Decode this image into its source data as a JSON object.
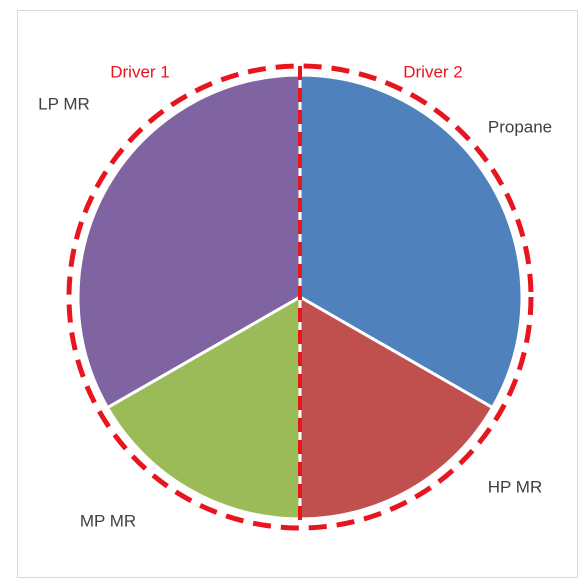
{
  "chart_data": {
    "type": "pie",
    "categories": [
      "Propane",
      "HP MR",
      "MP MR",
      "LP MR"
    ],
    "values": [
      33.3,
      16.7,
      16.7,
      33.3
    ],
    "colors": [
      "#4f81bd",
      "#c0504d",
      "#9bbb59",
      "#8064a2"
    ],
    "annotations": [
      "Driver 1",
      "Driver 2"
    ]
  }
}
